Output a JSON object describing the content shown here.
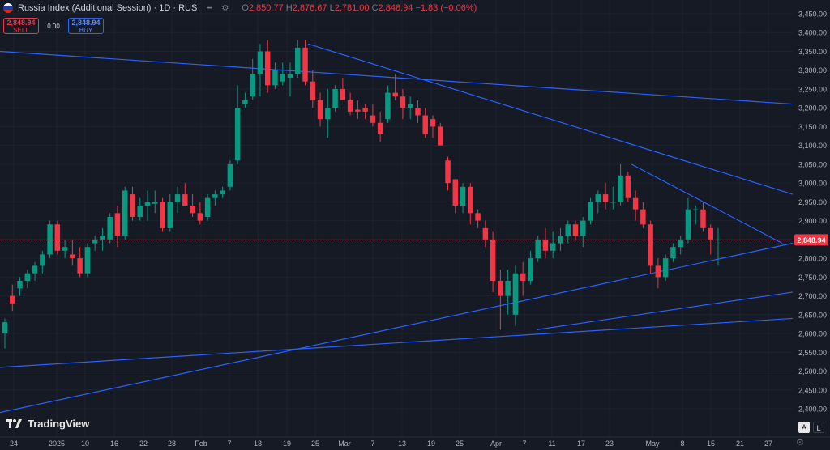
{
  "header": {
    "symbol": "Russia Index (Additional Session) · 1D · RUS",
    "open": "2,850.77",
    "high": "2,876.67",
    "low": "2,781.00",
    "close": "2,848.94",
    "change": "−1.83 (−0.06%)"
  },
  "trade": {
    "sell_price": "2,848.94",
    "sell_label": "SELL",
    "spread": "0.00",
    "buy_price": "2,848.94",
    "buy_label": "BUY"
  },
  "logo": "TradingView",
  "corner_buttons": {
    "auto": "A",
    "log": "L"
  },
  "colors": {
    "up": "#089981",
    "down": "#f23645",
    "lines": "#2962ff",
    "bg": "#161a25"
  },
  "chart_data": {
    "type": "candlestick",
    "symbol": "Russia Index (Additional Session)",
    "interval": "1D",
    "ylim": [
      2365,
      3478
    ],
    "y_ticks": [
      2400,
      2450,
      2500,
      2550,
      2600,
      2650,
      2700,
      2750,
      2800,
      2850,
      2900,
      2950,
      3000,
      3050,
      3100,
      3150,
      3200,
      3250,
      3300,
      3350,
      3400,
      3450
    ],
    "x_ticks": [
      "24",
      "2025",
      "10",
      "16",
      "22",
      "28",
      "Feb",
      "7",
      "13",
      "19",
      "25",
      "Mar",
      "7",
      "13",
      "19",
      "25",
      "Apr",
      "7",
      "11",
      "17",
      "23",
      "May",
      "8",
      "15",
      "21",
      "27"
    ],
    "last_price": "2,848.94",
    "candles": [
      [
        2600,
        2640,
        2560,
        2630
      ],
      [
        2700,
        2730,
        2660,
        2680
      ],
      [
        2720,
        2750,
        2700,
        2740
      ],
      [
        2740,
        2770,
        2720,
        2760
      ],
      [
        2760,
        2790,
        2740,
        2780
      ],
      [
        2780,
        2820,
        2760,
        2810
      ],
      [
        2810,
        2900,
        2800,
        2890
      ],
      [
        2890,
        2900,
        2810,
        2820
      ],
      [
        2820,
        2850,
        2800,
        2830
      ],
      [
        2810,
        2850,
        2780,
        2800
      ],
      [
        2800,
        2830,
        2750,
        2760
      ],
      [
        2760,
        2840,
        2750,
        2830
      ],
      [
        2840,
        2860,
        2820,
        2850
      ],
      [
        2850,
        2880,
        2820,
        2860
      ],
      [
        2850,
        2920,
        2840,
        2910
      ],
      [
        2920,
        2940,
        2830,
        2860
      ],
      [
        2860,
        2990,
        2850,
        2980
      ],
      [
        2970,
        2990,
        2900,
        2910
      ],
      [
        2910,
        2960,
        2900,
        2940
      ],
      [
        2940,
        2980,
        2900,
        2950
      ],
      [
        2945,
        2980,
        2920,
        2950
      ],
      [
        2950,
        2960,
        2870,
        2880
      ],
      [
        2880,
        2970,
        2870,
        2950
      ],
      [
        2950,
        2990,
        2920,
        2970
      ],
      [
        2970,
        3000,
        2950,
        2940
      ],
      [
        2940,
        2970,
        2910,
        2920
      ],
      [
        2920,
        2950,
        2890,
        2900
      ],
      [
        2910,
        2970,
        2900,
        2960
      ],
      [
        2960,
        2980,
        2940,
        2970
      ],
      [
        2970,
        2990,
        2960,
        2980
      ],
      [
        2990,
        3060,
        2980,
        3050
      ],
      [
        3060,
        3260,
        3050,
        3200
      ],
      [
        3210,
        3240,
        3200,
        3220
      ],
      [
        3230,
        3330,
        3220,
        3290
      ],
      [
        3290,
        3370,
        3230,
        3350
      ],
      [
        3350,
        3380,
        3240,
        3260
      ],
      [
        3260,
        3320,
        3250,
        3300
      ],
      [
        3270,
        3320,
        3260,
        3290
      ],
      [
        3280,
        3320,
        3230,
        3290
      ],
      [
        3290,
        3380,
        3280,
        3360
      ],
      [
        3360,
        3380,
        3260,
        3270
      ],
      [
        3270,
        3300,
        3200,
        3220
      ],
      [
        3220,
        3240,
        3150,
        3170
      ],
      [
        3170,
        3250,
        3120,
        3200
      ],
      [
        3200,
        3260,
        3190,
        3250
      ],
      [
        3250,
        3280,
        3220,
        3220
      ],
      [
        3220,
        3240,
        3180,
        3190
      ],
      [
        3195,
        3220,
        3170,
        3190
      ],
      [
        3200,
        3210,
        3170,
        3190
      ],
      [
        3180,
        3210,
        3150,
        3160
      ],
      [
        3160,
        3190,
        3110,
        3130
      ],
      [
        3170,
        3260,
        3160,
        3240
      ],
      [
        3240,
        3290,
        3220,
        3230
      ],
      [
        3230,
        3250,
        3170,
        3200
      ],
      [
        3200,
        3230,
        3170,
        3210
      ],
      [
        3200,
        3220,
        3160,
        3180
      ],
      [
        3180,
        3200,
        3120,
        3130
      ],
      [
        3170,
        3180,
        3120,
        3150
      ],
      [
        3150,
        3160,
        3100,
        3100
      ],
      [
        3060,
        3070,
        2980,
        3000
      ],
      [
        3010,
        3010,
        2920,
        2940
      ],
      [
        2940,
        3000,
        2920,
        2990
      ],
      [
        2990,
        3000,
        2890,
        2920
      ],
      [
        2920,
        2930,
        2880,
        2900
      ],
      [
        2880,
        2900,
        2830,
        2850
      ],
      [
        2850,
        2870,
        2710,
        2740
      ],
      [
        2740,
        2770,
        2610,
        2700
      ],
      [
        2700,
        2770,
        2650,
        2740
      ],
      [
        2650,
        2780,
        2620,
        2760
      ],
      [
        2760,
        2790,
        2700,
        2740
      ],
      [
        2740,
        2820,
        2730,
        2800
      ],
      [
        2800,
        2860,
        2790,
        2850
      ],
      [
        2850,
        2880,
        2800,
        2820
      ],
      [
        2820,
        2870,
        2800,
        2840
      ],
      [
        2840,
        2880,
        2820,
        2860
      ],
      [
        2860,
        2900,
        2840,
        2890
      ],
      [
        2890,
        2900,
        2850,
        2860
      ],
      [
        2860,
        2910,
        2830,
        2900
      ],
      [
        2900,
        2960,
        2890,
        2950
      ],
      [
        2950,
        2980,
        2920,
        2970
      ],
      [
        2970,
        3000,
        2930,
        2950
      ],
      [
        2950,
        2990,
        2930,
        2950
      ],
      [
        2950,
        3050,
        2940,
        3020
      ],
      [
        3020,
        3030,
        2950,
        2960
      ],
      [
        2960,
        2980,
        2900,
        2930
      ],
      [
        2930,
        2950,
        2880,
        2890
      ],
      [
        2890,
        2900,
        2760,
        2780
      ],
      [
        2780,
        2800,
        2720,
        2750
      ],
      [
        2750,
        2810,
        2740,
        2800
      ],
      [
        2800,
        2840,
        2790,
        2830
      ],
      [
        2830,
        2860,
        2810,
        2850
      ],
      [
        2850,
        2960,
        2840,
        2930
      ],
      [
        2930,
        2940,
        2890,
        2930
      ],
      [
        2930,
        2950,
        2870,
        2880
      ],
      [
        2880,
        2890,
        2810,
        2850
      ],
      [
        2850,
        2880,
        2780,
        2850
      ]
    ],
    "trendlines": [
      {
        "x1": "0",
        "y1": 3350,
        "x2": "end",
        "y2": 3210
      },
      {
        "x1": "19 Feb",
        "y1": 3370,
        "x2": "end",
        "y2": 2970
      },
      {
        "x1": "1 May",
        "y1": 3050,
        "x2": "23 May",
        "y2": 2840
      },
      {
        "x1": "0",
        "y1": 2390,
        "x2": "end",
        "y2": 2840
      },
      {
        "x1": "0",
        "y1": 2510,
        "x2": "end",
        "y2": 2640
      },
      {
        "x1": "8 Apr",
        "y1": 2610,
        "x2": "end",
        "y2": 2710
      }
    ]
  }
}
